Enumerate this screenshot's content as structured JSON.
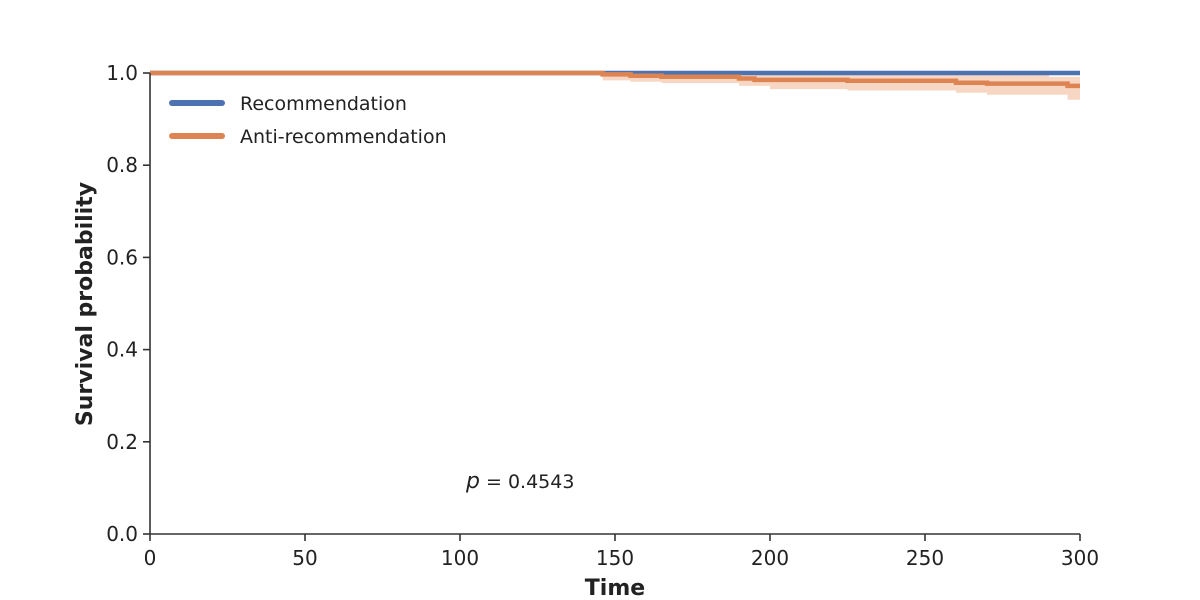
{
  "chart_data": {
    "type": "line",
    "xlabel": "Time",
    "ylabel": "Survival probability",
    "xlim": [
      0,
      300
    ],
    "ylim": [
      0,
      1.0
    ],
    "x_ticks": [
      "0",
      "50",
      "100",
      "150",
      "200",
      "250",
      "300"
    ],
    "y_ticks": [
      "0.0",
      "0.2",
      "0.4",
      "0.6",
      "0.8",
      "1.0"
    ],
    "grid": false,
    "legend_position": "top-left",
    "annotation": {
      "prefix": "p",
      "text": " = 0.4543"
    },
    "series": [
      {
        "name": "Recommendation",
        "color": "#4C72B0",
        "steps": [
          [
            0,
            1.0
          ],
          [
            300,
            1.0
          ]
        ]
      },
      {
        "name": "Anti-recommendation",
        "color": "#DD8452",
        "ci_color": "#F4C9B0",
        "steps": [
          [
            0,
            1.0
          ],
          [
            146,
            0.997
          ],
          [
            155,
            0.994
          ],
          [
            165,
            0.992
          ],
          [
            190,
            0.988
          ],
          [
            195,
            0.985
          ],
          [
            225,
            0.983
          ],
          [
            260,
            0.979
          ],
          [
            270,
            0.977
          ],
          [
            296,
            0.972
          ],
          [
            300,
            0.972
          ]
        ],
        "ci_upper": [
          [
            0,
            1.0
          ],
          [
            146,
            1.0
          ],
          [
            190,
            0.998
          ],
          [
            260,
            0.996
          ],
          [
            290,
            0.992
          ],
          [
            300,
            0.992
          ]
        ],
        "ci_lower": [
          [
            0,
            1.0
          ],
          [
            146,
            0.984
          ],
          [
            155,
            0.981
          ],
          [
            165,
            0.978
          ],
          [
            190,
            0.972
          ],
          [
            200,
            0.965
          ],
          [
            225,
            0.962
          ],
          [
            260,
            0.957
          ],
          [
            270,
            0.953
          ],
          [
            296,
            0.942
          ],
          [
            300,
            0.942
          ]
        ]
      }
    ]
  }
}
